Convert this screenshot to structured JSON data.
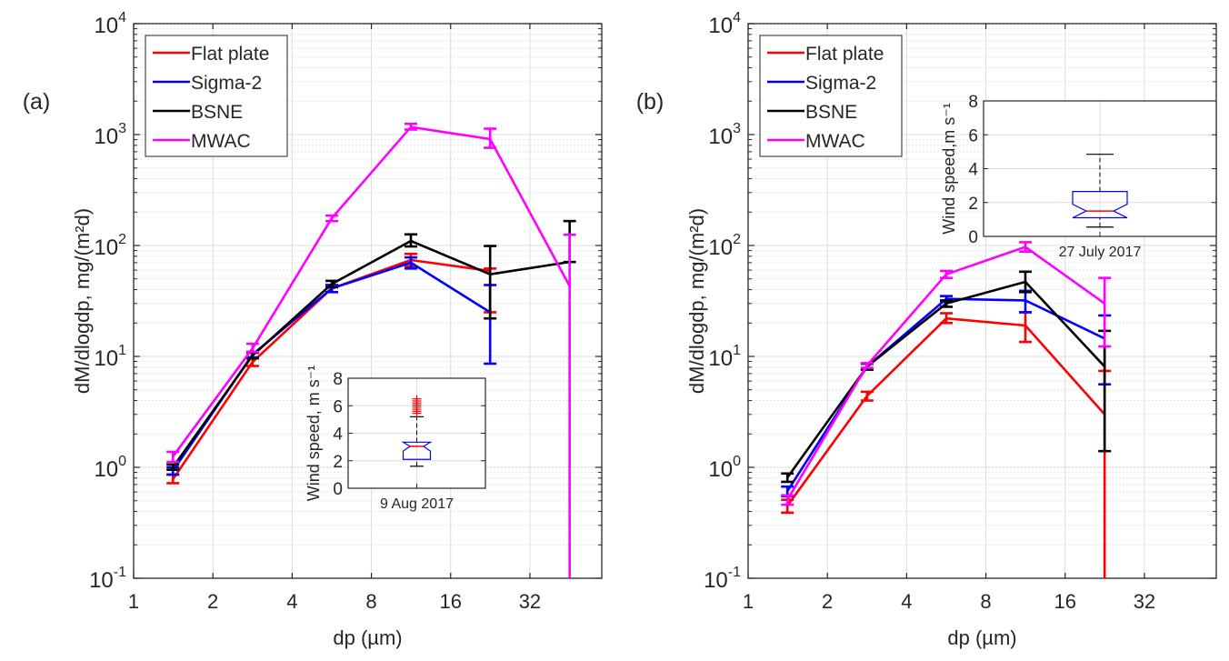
{
  "chart_data": [
    {
      "type": "line",
      "panel_label": "(a)",
      "xlabel": "dp (µm)",
      "ylabel": "dM/dlogdp, mg/(m²d)",
      "xscale": "log2",
      "yscale": "log10",
      "xlim": [
        1,
        60
      ],
      "ylim": [
        0.1,
        10000
      ],
      "xticks": [
        1,
        2,
        4,
        8,
        16,
        32
      ],
      "xtick_labels": [
        "1",
        "2",
        "4",
        "8",
        "16",
        "32"
      ],
      "yticks": [
        0.1,
        1,
        10,
        100,
        1000,
        10000
      ],
      "ytick_labels": [
        {
          "base": "10",
          "exp": "-1"
        },
        {
          "base": "10",
          "exp": "0"
        },
        {
          "base": "10",
          "exp": "1"
        },
        {
          "base": "10",
          "exp": "2"
        },
        {
          "base": "10",
          "exp": "3"
        },
        {
          "base": "10",
          "exp": "4"
        }
      ],
      "grid": true,
      "legend_position": "top-left",
      "x": [
        1.41,
        2.83,
        5.66,
        11.3,
        22.6,
        45.3
      ],
      "series": [
        {
          "name": "Flat plate",
          "color": "#ff0000",
          "values": [
            0.78,
            8.9,
            41,
            74,
            59,
            null
          ],
          "lower": [
            0.72,
            8.2,
            38,
            65,
            25,
            null
          ],
          "upper": [
            0.86,
            9.6,
            44,
            84,
            62,
            null
          ]
        },
        {
          "name": "Sigma-2",
          "color": "#0000ff",
          "values": [
            0.93,
            10.4,
            41,
            70,
            25,
            null
          ],
          "lower": [
            0.86,
            9.8,
            38,
            62,
            8.6,
            null
          ],
          "upper": [
            1.0,
            11.0,
            44,
            78,
            44,
            null
          ]
        },
        {
          "name": "BSNE",
          "color": "#000000",
          "values": [
            1.0,
            10.2,
            45,
            110,
            55,
            71
          ],
          "lower": [
            0.95,
            9.6,
            42,
            98,
            22,
            71
          ],
          "upper": [
            1.06,
            10.8,
            48,
            126,
            99,
            166
          ]
        },
        {
          "name": "MWAC",
          "color": "#ff00ff",
          "values": [
            1.25,
            11.8,
            176,
            1170,
            910,
            43
          ],
          "lower": [
            1.12,
            11.0,
            166,
            1110,
            760,
            0.1
          ],
          "upper": [
            1.38,
            13.0,
            186,
            1250,
            1130,
            125
          ]
        }
      ],
      "inset": {
        "type": "box",
        "ylabel": "Wind speed, m s⁻¹",
        "category": "9 Aug 2017",
        "ylim": [
          0,
          8
        ],
        "yticks": [
          0,
          2,
          4,
          6,
          8
        ],
        "whisker_low": 1.6,
        "q1": 2.1,
        "median": 3.05,
        "q3": 3.35,
        "notch_low": 2.7,
        "notch_high": 3.35,
        "whisker_high": 5.2,
        "outliers": [
          5.45,
          5.6,
          5.75,
          5.9,
          6.05,
          6.2,
          6.35,
          6.5
        ],
        "box_color": "#0000ff",
        "median_color": "#ff0000",
        "outlier_color": "#ff0000"
      }
    },
    {
      "type": "line",
      "panel_label": "(b)",
      "xlabel": "dp (µm)",
      "ylabel": "dM/dlogdp, mg/(m²d)",
      "xscale": "log2",
      "yscale": "log10",
      "xlim": [
        1,
        60
      ],
      "ylim": [
        0.1,
        10000
      ],
      "xticks": [
        1,
        2,
        4,
        8,
        16,
        32
      ],
      "xtick_labels": [
        "1",
        "2",
        "4",
        "8",
        "16",
        "32"
      ],
      "yticks": [
        0.1,
        1,
        10,
        100,
        1000,
        10000
      ],
      "ytick_labels": [
        {
          "base": "10",
          "exp": "-1"
        },
        {
          "base": "10",
          "exp": "0"
        },
        {
          "base": "10",
          "exp": "1"
        },
        {
          "base": "10",
          "exp": "2"
        },
        {
          "base": "10",
          "exp": "3"
        },
        {
          "base": "10",
          "exp": "4"
        }
      ],
      "grid": true,
      "legend_position": "top-left",
      "x": [
        1.41,
        2.83,
        5.66,
        11.3,
        22.6
      ],
      "series": [
        {
          "name": "Flat plate",
          "color": "#ff0000",
          "values": [
            0.45,
            4.4,
            22,
            19,
            3.0
          ],
          "lower": [
            0.39,
            4.0,
            20,
            13.5,
            0.1
          ],
          "upper": [
            0.51,
            4.8,
            24.5,
            25,
            7.4
          ]
        },
        {
          "name": "Sigma-2",
          "color": "#0000ff",
          "values": [
            0.61,
            8.1,
            33,
            32,
            14.5
          ],
          "lower": [
            0.55,
            7.6,
            31,
            25,
            5.6
          ],
          "upper": [
            0.67,
            8.6,
            35,
            39,
            23.4
          ]
        },
        {
          "name": "BSNE",
          "color": "#000000",
          "values": [
            0.81,
            8.1,
            30,
            47,
            8.1
          ],
          "lower": [
            0.74,
            7.6,
            28,
            38,
            1.4
          ],
          "upper": [
            0.88,
            8.6,
            32,
            58,
            17
          ]
        },
        {
          "name": "MWAC",
          "color": "#ff00ff",
          "values": [
            0.51,
            8.3,
            55,
            97,
            30
          ],
          "lower": [
            0.46,
            7.9,
            51,
            88,
            12.3
          ],
          "upper": [
            0.56,
            8.7,
            59,
            107,
            51
          ]
        }
      ],
      "inset": {
        "type": "box",
        "ylabel": "Wind speed,m s⁻¹",
        "category": "27 July 2017",
        "ylim": [
          0,
          8
        ],
        "yticks": [
          0,
          2,
          4,
          6,
          8
        ],
        "whisker_low": 0.55,
        "q1": 1.1,
        "median": 1.5,
        "q3": 2.65,
        "notch_low": 1.1,
        "notch_high": 1.9,
        "whisker_high": 4.85,
        "outliers": [],
        "box_color": "#0000ff",
        "median_color": "#ff0000",
        "outlier_color": "#ff0000"
      }
    }
  ]
}
